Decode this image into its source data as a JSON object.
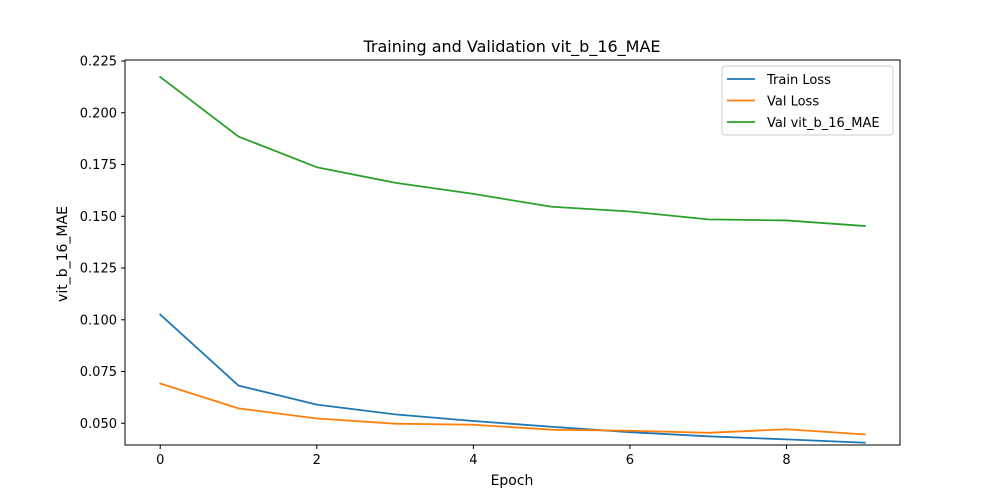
{
  "chart_data": {
    "type": "line",
    "title": "Training and Validation vit_b_16_MAE",
    "xlabel": "Epoch",
    "ylabel": "vit_b_16_MAE",
    "x": [
      0,
      1,
      2,
      3,
      4,
      5,
      6,
      7,
      8,
      9
    ],
    "xlim": [
      -0.45,
      9.45
    ],
    "ylim": [
      0.0395,
      0.2255
    ],
    "x_ticks": [
      "0",
      "2",
      "4",
      "6",
      "8"
    ],
    "y_ticks": [
      "0.050",
      "0.075",
      "0.100",
      "0.125",
      "0.150",
      "0.175",
      "0.200",
      "0.225"
    ],
    "grid": false,
    "legend_position": "top-right",
    "series": [
      {
        "name": "Train Loss",
        "color": "#1f77b4",
        "values": [
          0.1025,
          0.0682,
          0.059,
          0.0543,
          0.0511,
          0.0483,
          0.0457,
          0.0437,
          0.0422,
          0.0406
        ]
      },
      {
        "name": "Val Loss",
        "color": "#ff7f0e",
        "values": [
          0.0692,
          0.0572,
          0.0523,
          0.0498,
          0.0493,
          0.0469,
          0.0464,
          0.0454,
          0.0471,
          0.0446
        ]
      },
      {
        "name": "Val vit_b_16_MAE",
        "color": "#2ca02c",
        "values": [
          0.2173,
          0.1885,
          0.1737,
          0.1662,
          0.1608,
          0.1546,
          0.1523,
          0.1485,
          0.148,
          0.1453
        ]
      }
    ]
  }
}
